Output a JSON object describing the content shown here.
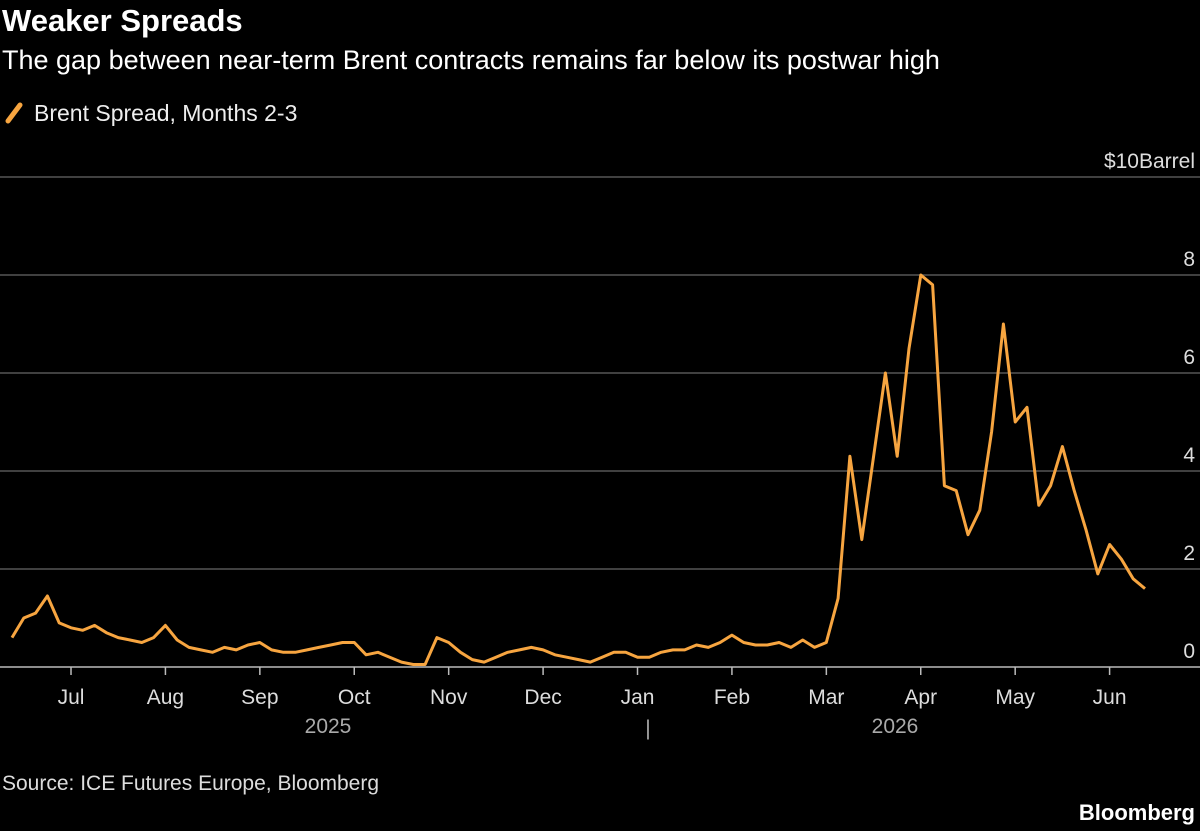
{
  "chart_data": {
    "type": "line",
    "title": "Weaker Spreads",
    "subtitle": "The gap between near-term Brent contracts remains far below its postwar high",
    "source": "Source: ICE Futures Europe, Bloomberg",
    "brand": "Bloomberg",
    "year_labels": [
      "2025",
      "2026"
    ],
    "categories": [
      null,
      null,
      null,
      null,
      null,
      "Jul",
      null,
      null,
      null,
      null,
      null,
      null,
      null,
      "Aug",
      null,
      null,
      null,
      null,
      null,
      null,
      null,
      "Sep",
      null,
      null,
      null,
      null,
      null,
      null,
      null,
      "Oct",
      null,
      null,
      null,
      null,
      null,
      null,
      null,
      "Nov",
      null,
      null,
      null,
      null,
      null,
      null,
      null,
      "Dec",
      null,
      null,
      null,
      null,
      null,
      null,
      null,
      "Jan",
      null,
      null,
      null,
      null,
      null,
      null,
      null,
      "Feb",
      null,
      null,
      null,
      null,
      null,
      null,
      null,
      "Mar",
      null,
      null,
      null,
      null,
      null,
      null,
      null,
      "Apr",
      null,
      null,
      null,
      null,
      null,
      null,
      null,
      "May",
      null,
      null,
      null,
      null,
      null,
      null,
      null,
      "Jun",
      null,
      null,
      null
    ],
    "series": [
      {
        "name": "Brent Spread, Months 2-3",
        "color": "#f7a540",
        "values": [
          0.6,
          1.0,
          1.1,
          1.45,
          0.9,
          0.8,
          0.75,
          0.85,
          0.7,
          0.6,
          0.55,
          0.5,
          0.6,
          0.85,
          0.55,
          0.4,
          0.35,
          0.3,
          0.4,
          0.35,
          0.45,
          0.5,
          0.35,
          0.3,
          0.3,
          0.35,
          0.4,
          0.45,
          0.5,
          0.5,
          0.25,
          0.3,
          0.2,
          0.1,
          0.05,
          0.05,
          0.6,
          0.5,
          0.3,
          0.15,
          0.1,
          0.2,
          0.3,
          0.35,
          0.4,
          0.35,
          0.25,
          0.2,
          0.15,
          0.1,
          0.2,
          0.3,
          0.3,
          0.2,
          0.2,
          0.3,
          0.35,
          0.35,
          0.45,
          0.4,
          0.5,
          0.65,
          0.5,
          0.45,
          0.45,
          0.5,
          0.4,
          0.55,
          0.4,
          0.5,
          1.4,
          4.3,
          2.6,
          4.3,
          6.0,
          4.3,
          6.5,
          8.0,
          7.8,
          3.7,
          3.6,
          2.7,
          3.2,
          4.8,
          7.0,
          5.0,
          5.3,
          3.3,
          3.7,
          4.5,
          3.6,
          2.8,
          1.9,
          2.5,
          2.2,
          1.8,
          1.6
        ]
      }
    ],
    "ylim": [
      0,
      10
    ],
    "yticks": [
      0,
      2,
      4,
      6,
      8,
      {
        "value": 10,
        "label": "$10Barrel"
      }
    ],
    "grid": true
  }
}
